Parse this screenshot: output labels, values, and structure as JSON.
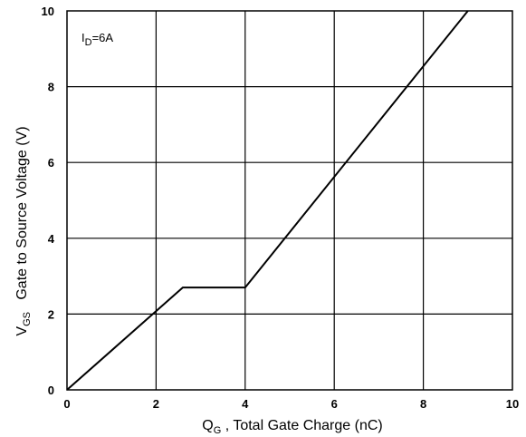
{
  "chart_data": {
    "type": "line",
    "title": "",
    "annotation": {
      "main": "I",
      "sub": "D",
      "rest": "=6A"
    },
    "xlabel": {
      "main": "Q",
      "sub": "G",
      "rest": " , Total Gate Charge (nC)"
    },
    "ylabel": {
      "main": "V",
      "sub": "GS",
      "rest": "   Gate to Source Voltage (V)"
    },
    "xlim": [
      0,
      10
    ],
    "ylim": [
      0,
      10
    ],
    "xticks": [
      0,
      2,
      4,
      6,
      8,
      10
    ],
    "yticks": [
      0,
      2,
      4,
      6,
      8,
      10
    ],
    "grid": true,
    "legend": "none",
    "series": [
      {
        "color": "#000000",
        "x": [
          0,
          2.6,
          4.0,
          9.0
        ],
        "y": [
          0,
          2.7,
          2.7,
          10.0
        ]
      }
    ]
  }
}
